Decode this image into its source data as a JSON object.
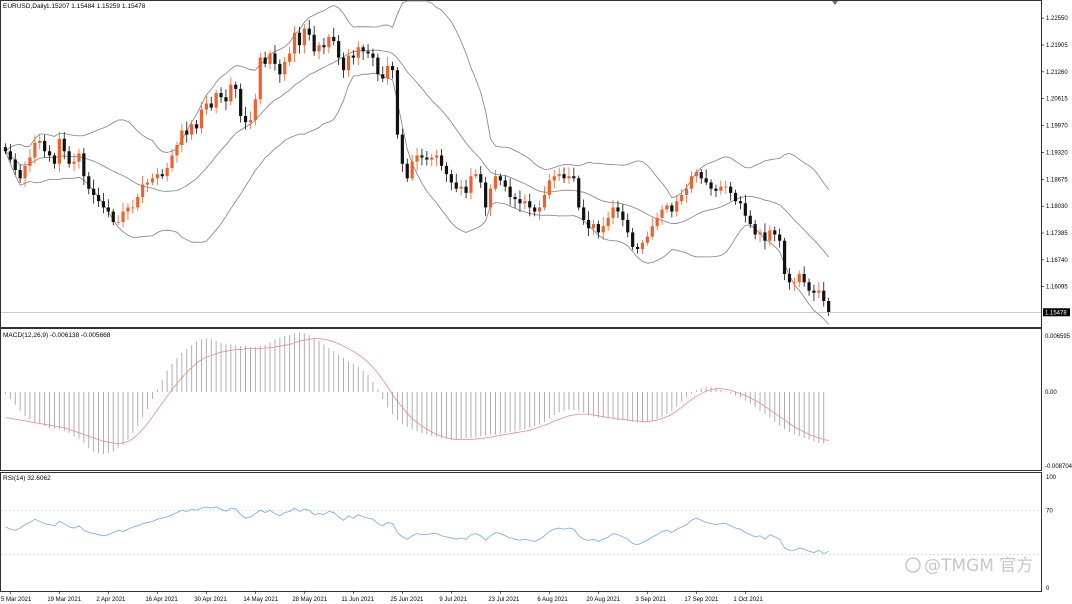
{
  "header": {
    "symbol_label": "EURUSD,Daily",
    "ohlc_label": "1.15207 1.15484 1.15259 1.15478"
  },
  "panels": {
    "macd_label": "MACD(12,26,9) -0.006138 -0.005668",
    "rsi_label": "RSI(14) 32.6062"
  },
  "current_price_label": "1.15478",
  "watermark": "@TMGM 官方",
  "colors": {
    "bull": "#f0602a",
    "bear": "#111111",
    "bands": "#808080",
    "macd_hist": "#a8a8a8",
    "macd_signal": "#f08a8a",
    "rsi_line": "#7fb2ee",
    "grid_line": "#cccccc"
  },
  "chart_data": [
    {
      "type": "candlestick",
      "title": "EURUSD,Daily",
      "x_tick_labels": [
        "5 Mar 2021",
        "19 Mar 2021",
        "2 Apr 2021",
        "16 Apr 2021",
        "30 Apr 2021",
        "14 May 2021",
        "28 May 2021",
        "11 Jun 2021",
        "25 Jun 2021",
        "9 Jul 2021",
        "23 Jul 2021",
        "6 Aug 2021",
        "20 Aug 2021",
        "3 Sep 2021",
        "17 Sep 2021",
        "1 Oct 2021"
      ],
      "y_tick_labels": [
        "1.22550",
        "1.21905",
        "1.21260",
        "1.20615",
        "1.19970",
        "1.19320",
        "1.18675",
        "1.18030",
        "1.17385",
        "1.16740",
        "1.16095"
      ],
      "ylim": [
        1.1515,
        1.2289
      ],
      "close": [
        1.1935,
        1.1915,
        1.189,
        1.187,
        1.19,
        1.192,
        1.1955,
        1.196,
        1.1935,
        1.1925,
        1.1905,
        1.1965,
        1.1935,
        1.1905,
        1.191,
        1.193,
        1.1875,
        1.1845,
        1.183,
        1.1815,
        1.18,
        1.179,
        1.1765,
        1.1765,
        1.179,
        1.18,
        1.18,
        1.1825,
        1.1855,
        1.186,
        1.187,
        1.188,
        1.1875,
        1.1895,
        1.1925,
        1.195,
        1.1985,
        1.1975,
        1.2,
        1.199,
        1.2035,
        1.205,
        1.204,
        1.2075,
        1.2065,
        1.2055,
        1.2095,
        1.2085,
        1.202,
        1.2005,
        1.201,
        1.206,
        1.216,
        1.2145,
        1.217,
        1.2145,
        1.212,
        1.215,
        1.217,
        1.222,
        1.219,
        1.223,
        1.2215,
        1.2175,
        1.219,
        1.2185,
        1.221,
        1.22,
        1.216,
        1.213,
        1.2165,
        1.216,
        1.2185,
        1.2175,
        1.217,
        1.216,
        1.212,
        1.211,
        1.214,
        1.213,
        1.1975,
        1.1905,
        1.187,
        1.191,
        1.1925,
        1.192,
        1.1915,
        1.192,
        1.1925,
        1.19,
        1.188,
        1.186,
        1.1845,
        1.185,
        1.1835,
        1.1875,
        1.188,
        1.186,
        1.18,
        1.1845,
        1.1875,
        1.1865,
        1.185,
        1.1825,
        1.182,
        1.181,
        1.1815,
        1.18,
        1.179,
        1.18,
        1.183,
        1.1865,
        1.1875,
        1.188,
        1.187,
        1.1875,
        1.187,
        1.18,
        1.177,
        1.175,
        1.176,
        1.174,
        1.1755,
        1.1775,
        1.18,
        1.179,
        1.177,
        1.174,
        1.1705,
        1.17,
        1.1715,
        1.173,
        1.1755,
        1.1775,
        1.1795,
        1.1805,
        1.179,
        1.1815,
        1.183,
        1.1845,
        1.1875,
        1.1885,
        1.187,
        1.186,
        1.1845,
        1.184,
        1.185,
        1.185,
        1.1835,
        1.1815,
        1.181,
        1.178,
        1.176,
        1.1735,
        1.174,
        1.172,
        1.1745,
        1.1735,
        1.172,
        1.164,
        1.162,
        1.162,
        1.164,
        1.162,
        1.16,
        1.1595,
        1.16,
        1.1575,
        1.1548
      ],
      "macd_hist": [
        -0.0002,
        -0.0008,
        -0.0015,
        -0.0022,
        -0.0028,
        -0.0032,
        -0.0036,
        -0.0038,
        -0.004,
        -0.0042,
        -0.0043,
        -0.0044,
        -0.0046,
        -0.0048,
        -0.0052,
        -0.0055,
        -0.006,
        -0.0066,
        -0.007,
        -0.0072,
        -0.0073,
        -0.0072,
        -0.007,
        -0.0066,
        -0.0062,
        -0.0056,
        -0.0048,
        -0.004,
        -0.003,
        -0.002,
        -0.0008,
        0.0003,
        0.0014,
        0.0025,
        0.0033,
        0.004,
        0.0046,
        0.0051,
        0.0055,
        0.0059,
        0.0062,
        0.0063,
        0.0062,
        0.006,
        0.0058,
        0.0057,
        0.0056,
        0.0055,
        0.0054,
        0.0054,
        0.0053,
        0.0053,
        0.0054,
        0.0055,
        0.0058,
        0.0062,
        0.0064,
        0.0066,
        0.0067,
        0.0069,
        0.007,
        0.0069,
        0.0067,
        0.0064,
        0.006,
        0.0056,
        0.0052,
        0.0048,
        0.0044,
        0.004,
        0.0036,
        0.0033,
        0.003,
        0.0025,
        0.002,
        0.0012,
        0.0003,
        -0.0008,
        -0.0018,
        -0.0026,
        -0.0033,
        -0.0038,
        -0.0041,
        -0.0044,
        -0.0046,
        -0.0048,
        -0.005,
        -0.0052,
        -0.0053,
        -0.0054,
        -0.0055,
        -0.0056,
        -0.0056,
        -0.0055,
        -0.0054,
        -0.0054,
        -0.0053,
        -0.0052,
        -0.0051,
        -0.005,
        -0.005,
        -0.0049,
        -0.0048,
        -0.0047,
        -0.0046,
        -0.0045,
        -0.0044,
        -0.0042,
        -0.004,
        -0.0038,
        -0.0035,
        -0.0031,
        -0.0027,
        -0.0024,
        -0.0022,
        -0.0021,
        -0.0021,
        -0.0022,
        -0.0024,
        -0.0027,
        -0.0029,
        -0.003,
        -0.003,
        -0.0031,
        -0.0031,
        -0.0032,
        -0.0033,
        -0.0034,
        -0.0035,
        -0.0036,
        -0.0036,
        -0.0035,
        -0.0034,
        -0.0032,
        -0.0029,
        -0.0026,
        -0.0022,
        -0.0017,
        -0.0011,
        -0.0006,
        -0.0002,
        0.0002,
        0.0005,
        0.0006,
        0.0006,
        0.0005,
        0.0003,
        0.0001,
        -0.0002,
        -0.0004,
        -0.0006,
        -0.001,
        -0.0014,
        -0.0018,
        -0.0022,
        -0.0026,
        -0.003,
        -0.0035,
        -0.004,
        -0.0044,
        -0.0047,
        -0.005,
        -0.0052,
        -0.0054,
        -0.0056,
        -0.0058,
        -0.006,
        -0.0061
      ],
      "macd_signal": [
        -0.003,
        -0.0031,
        -0.0032,
        -0.0033,
        -0.0034,
        -0.0035,
        -0.0036,
        -0.0037,
        -0.0038,
        -0.0039,
        -0.004,
        -0.0041,
        -0.0042,
        -0.0044,
        -0.0046,
        -0.0048,
        -0.005,
        -0.0052,
        -0.0054,
        -0.0056,
        -0.0058,
        -0.0059,
        -0.006,
        -0.0061,
        -0.006,
        -0.0058,
        -0.0055,
        -0.005,
        -0.0044,
        -0.0037,
        -0.0029,
        -0.0021,
        -0.0013,
        -0.0005,
        0.0003,
        0.001,
        0.0017,
        0.0023,
        0.0029,
        0.0034,
        0.0038,
        0.0041,
        0.0043,
        0.0045,
        0.0047,
        0.0048,
        0.0049,
        0.005,
        0.005,
        0.0051,
        0.0051,
        0.0051,
        0.0051,
        0.0052,
        0.0052,
        0.0053,
        0.0054,
        0.0055,
        0.0056,
        0.0058,
        0.006,
        0.0061,
        0.0062,
        0.0063,
        0.0063,
        0.0062,
        0.0061,
        0.0059,
        0.0057,
        0.0054,
        0.0051,
        0.0048,
        0.0044,
        0.004,
        0.0035,
        0.0029,
        0.0022,
        0.0014,
        0.0006,
        -0.0003,
        -0.0011,
        -0.0018,
        -0.0025,
        -0.0031,
        -0.0036,
        -0.004,
        -0.0044,
        -0.0047,
        -0.005,
        -0.0052,
        -0.0054,
        -0.0055,
        -0.0056,
        -0.0056,
        -0.0056,
        -0.0056,
        -0.0055,
        -0.0055,
        -0.0054,
        -0.0053,
        -0.0052,
        -0.0051,
        -0.005,
        -0.0049,
        -0.0048,
        -0.0047,
        -0.0046,
        -0.0045,
        -0.0043,
        -0.0041,
        -0.0039,
        -0.0037,
        -0.0034,
        -0.0032,
        -0.003,
        -0.0028,
        -0.0027,
        -0.0026,
        -0.0026,
        -0.0026,
        -0.0027,
        -0.0028,
        -0.0029,
        -0.003,
        -0.0031,
        -0.0032,
        -0.0032,
        -0.0033,
        -0.0034,
        -0.0034,
        -0.0035,
        -0.0035,
        -0.0034,
        -0.0033,
        -0.0031,
        -0.0029,
        -0.0026,
        -0.0022,
        -0.0018,
        -0.0013,
        -0.0009,
        -0.0005,
        -0.0002,
        0.0001,
        0.0003,
        0.0004,
        0.0004,
        0.0003,
        0.0002,
        0.0,
        -0.0002,
        -0.0004,
        -0.0007,
        -0.001,
        -0.0013,
        -0.0017,
        -0.0021,
        -0.0025,
        -0.0029,
        -0.0033,
        -0.0037,
        -0.0041,
        -0.0044,
        -0.0047,
        -0.005,
        -0.0052,
        -0.0054,
        -0.0056,
        -0.0057
      ],
      "macd_y_tick_labels": [
        "0.006595",
        "0.00",
        "-0.008704"
      ],
      "rsi": [
        55,
        53,
        52,
        54,
        57,
        59,
        62,
        60,
        58,
        57,
        56,
        60,
        58,
        55,
        54,
        56,
        52,
        50,
        49,
        48,
        47,
        48,
        50,
        52,
        51,
        53,
        55,
        56,
        58,
        59,
        60,
        62,
        63,
        64,
        66,
        68,
        70,
        69,
        71,
        70,
        72,
        73,
        72,
        73,
        71,
        69,
        72,
        71,
        66,
        63,
        64,
        67,
        70,
        68,
        70,
        67,
        65,
        68,
        69,
        72,
        69,
        71,
        70,
        66,
        67,
        66,
        69,
        68,
        64,
        61,
        65,
        63,
        66,
        64,
        63,
        62,
        58,
        56,
        59,
        58,
        50,
        46,
        44,
        47,
        49,
        48,
        48,
        49,
        49,
        47,
        46,
        45,
        44,
        45,
        44,
        48,
        49,
        47,
        43,
        47,
        50,
        49,
        47,
        45,
        44,
        43,
        44,
        43,
        42,
        44,
        47,
        51,
        53,
        54,
        53,
        54,
        53,
        47,
        44,
        43,
        44,
        42,
        44,
        46,
        49,
        48,
        46,
        44,
        40,
        39,
        41,
        43,
        46,
        48,
        51,
        52,
        50,
        53,
        55,
        57,
        61,
        63,
        61,
        59,
        58,
        57,
        58,
        58,
        56,
        54,
        53,
        50,
        48,
        46,
        47,
        44,
        48,
        46,
        44,
        36,
        34,
        34,
        36,
        35,
        33,
        32,
        34,
        31,
        33
      ]
    }
  ]
}
